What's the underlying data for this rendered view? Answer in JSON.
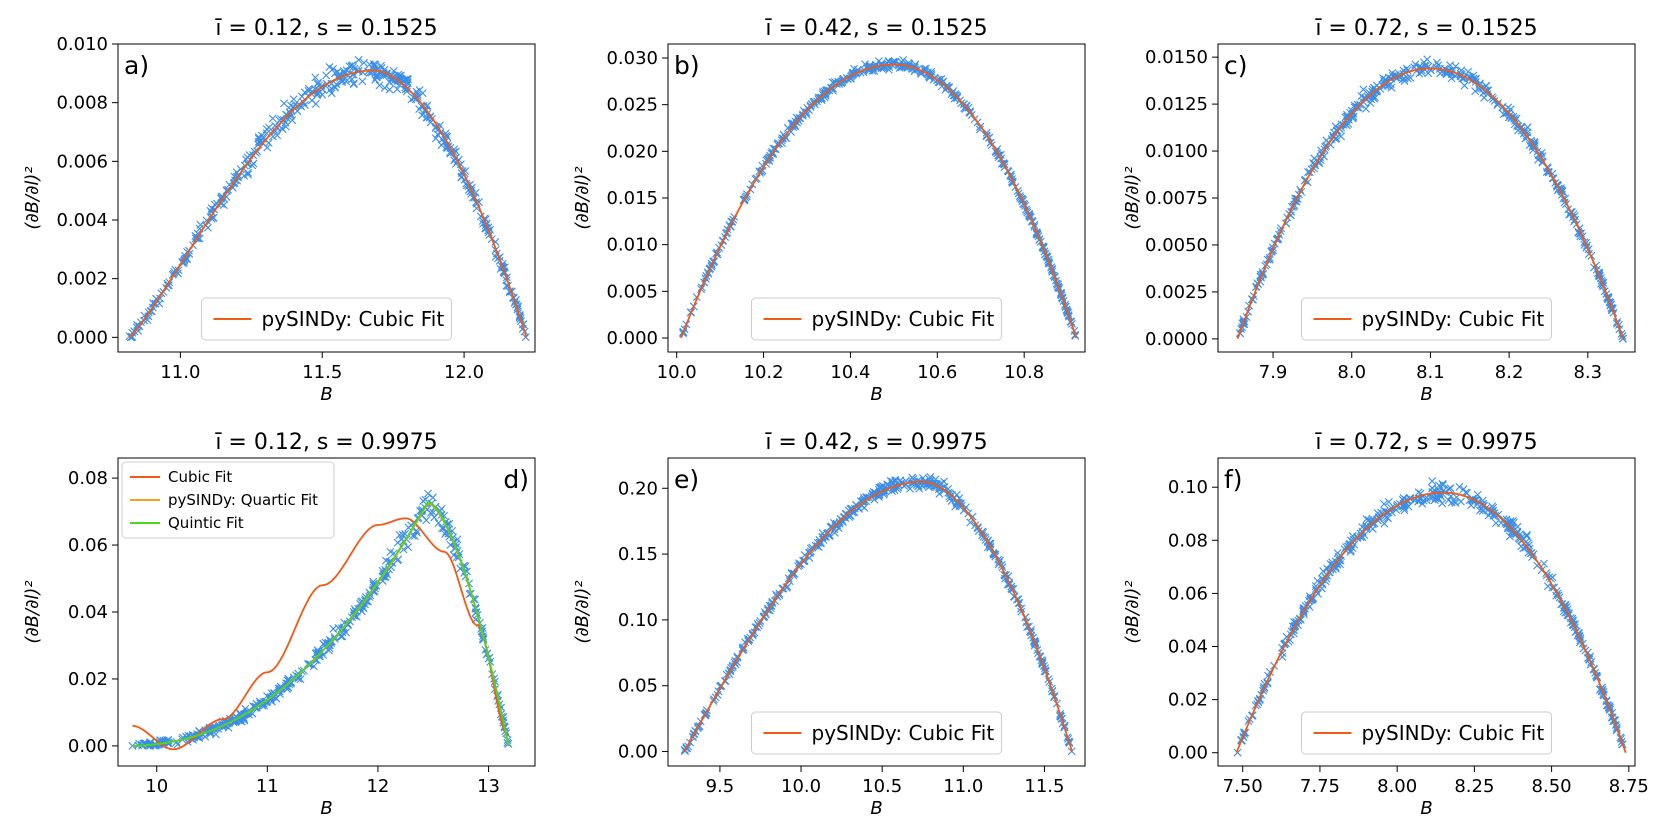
{
  "colors": {
    "scatter": "#3a8ee8",
    "cubic": "#f05a14",
    "quartic": "#f5a020",
    "quintic": "#4ad81e"
  },
  "chart_data": [
    {
      "type": "scatter",
      "panel": "a)",
      "title_main": "ī = 0.12, s = 0.1525",
      "xlabel": "B",
      "ylabel": "(∂B/∂l)²",
      "xlim": [
        10.78,
        12.25
      ],
      "ylim": [
        -0.0005,
        0.01
      ],
      "xticks": [
        11.0,
        11.5,
        12.0
      ],
      "xtick_labels": [
        "11.0",
        "11.5",
        "12.0"
      ],
      "yticks": [
        0.0,
        0.002,
        0.004,
        0.006,
        0.008,
        0.01
      ],
      "ytick_labels": [
        "0.000",
        "0.002",
        "0.004",
        "0.006",
        "0.008",
        "0.010"
      ],
      "series_model": {
        "x0": 10.82,
        "x1": 12.22,
        "peak_x": 11.68,
        "peak_y": 0.0091,
        "scatter_noise": 0.0005
      },
      "fits": [
        {
          "name": "pySINDy: Cubic Fit",
          "color_key": "cubic",
          "shape": "skew",
          "peak_x": 11.68,
          "peak_y": 0.0091
        }
      ],
      "legend": {
        "entries": [
          "pySINDy: Cubic Fit"
        ],
        "location": "lower center"
      },
      "panel_letter_location": "top-left"
    },
    {
      "type": "scatter",
      "panel": "b)",
      "title_main": "ī = 0.42, s = 0.1525",
      "xlabel": "B",
      "ylabel": "(∂B/∂l)²",
      "xlim": [
        9.98,
        10.94
      ],
      "ylim": [
        -0.0015,
        0.0315
      ],
      "xticks": [
        10.0,
        10.2,
        10.4,
        10.6,
        10.8
      ],
      "xtick_labels": [
        "10.0",
        "10.2",
        "10.4",
        "10.6",
        "10.8"
      ],
      "yticks": [
        0.0,
        0.005,
        0.01,
        0.015,
        0.02,
        0.025,
        0.03
      ],
      "ytick_labels": [
        "0.000",
        "0.005",
        "0.010",
        "0.015",
        "0.020",
        "0.025",
        "0.030"
      ],
      "series_model": {
        "x0": 10.01,
        "x1": 10.92,
        "peak_x": 10.5,
        "peak_y": 0.0293,
        "scatter_noise": 0.0005
      },
      "fits": [
        {
          "name": "pySINDy: Cubic Fit",
          "color_key": "cubic",
          "shape": "arch",
          "peak_x": 10.5,
          "peak_y": 0.0293
        }
      ],
      "legend": {
        "entries": [
          "pySINDy: Cubic Fit"
        ],
        "location": "lower center"
      },
      "panel_letter_location": "top-left"
    },
    {
      "type": "scatter",
      "panel": "c)",
      "title_main": "ī = 0.72, s = 0.1525",
      "xlabel": "B",
      "ylabel": "(∂B/∂l)²",
      "xlim": [
        7.83,
        8.36
      ],
      "ylim": [
        -0.0007,
        0.0157
      ],
      "xticks": [
        7.9,
        8.0,
        8.1,
        8.2,
        8.3
      ],
      "xtick_labels": [
        "7.9",
        "8.0",
        "8.1",
        "8.2",
        "8.3"
      ],
      "yticks": [
        0.0,
        0.0025,
        0.005,
        0.0075,
        0.01,
        0.0125,
        0.015
      ],
      "ytick_labels": [
        "0.0000",
        "0.0025",
        "0.0050",
        "0.0075",
        "0.0100",
        "0.0125",
        "0.0150"
      ],
      "series_model": {
        "x0": 7.855,
        "x1": 8.345,
        "peak_x": 8.1,
        "peak_y": 0.0144,
        "scatter_noise": 0.0005
      },
      "fits": [
        {
          "name": "pySINDy: Cubic Fit",
          "color_key": "cubic",
          "shape": "arch",
          "peak_x": 8.1,
          "peak_y": 0.0144
        }
      ],
      "legend": {
        "entries": [
          "pySINDy: Cubic Fit"
        ],
        "location": "lower center"
      },
      "panel_letter_location": "top-left"
    },
    {
      "type": "scatter",
      "panel": "d)",
      "title_main": "ī = 0.12, s = 0.9975",
      "xlabel": "B",
      "ylabel": "(∂B/∂l)²",
      "xlim": [
        9.65,
        13.42
      ],
      "ylim": [
        -0.006,
        0.086
      ],
      "xticks": [
        10,
        11,
        12,
        13
      ],
      "xtick_labels": [
        "10",
        "11",
        "12",
        "13"
      ],
      "yticks": [
        0.0,
        0.02,
        0.04,
        0.06,
        0.08
      ],
      "ytick_labels": [
        "0.00",
        "0.02",
        "0.04",
        "0.06",
        "0.08"
      ],
      "series_model": {
        "x0": 9.78,
        "x1": 13.18,
        "peak_x": 12.45,
        "peak_y": 0.0725,
        "scatter_noise": 0.004
      },
      "fits": [
        {
          "name": "Cubic Fit",
          "color_key": "cubic",
          "shape": "cubic-poor"
        },
        {
          "name": "pySINDy: Quartic Fit",
          "color_key": "quartic",
          "shape": "skew-strong"
        },
        {
          "name": "Quintic Fit",
          "color_key": "quintic",
          "shape": "skew-strong"
        }
      ],
      "legend": {
        "entries": [
          "Cubic Fit",
          "pySINDy: Quartic Fit",
          "Quintic Fit"
        ],
        "location": "upper left"
      },
      "panel_letter_location": "top-right"
    },
    {
      "type": "scatter",
      "panel": "e)",
      "title_main": "ī = 0.42, s = 0.9975",
      "xlabel": "B",
      "ylabel": "(∂B/∂l)²",
      "xlim": [
        9.18,
        11.75
      ],
      "ylim": [
        -0.011,
        0.223
      ],
      "xticks": [
        9.5,
        10.0,
        10.5,
        11.0,
        11.5
      ],
      "xtick_labels": [
        "9.5",
        "10.0",
        "10.5",
        "11.0",
        "11.5"
      ],
      "yticks": [
        0.0,
        0.05,
        0.1,
        0.15,
        0.2
      ],
      "ytick_labels": [
        "0.00",
        "0.05",
        "0.10",
        "0.15",
        "0.20"
      ],
      "series_model": {
        "x0": 9.28,
        "x1": 11.67,
        "peak_x": 10.75,
        "peak_y": 0.205,
        "scatter_noise": 0.005
      },
      "fits": [
        {
          "name": "pySINDy: Cubic Fit",
          "color_key": "cubic",
          "shape": "arch-skew",
          "peak_x": 10.75,
          "peak_y": 0.205
        }
      ],
      "legend": {
        "entries": [
          "pySINDy: Cubic Fit"
        ],
        "location": "lower center"
      },
      "panel_letter_location": "top-left"
    },
    {
      "type": "scatter",
      "panel": "f)",
      "title_main": "ī = 0.72, s = 0.9975",
      "xlabel": "B",
      "ylabel": "(∂B/∂l)²",
      "xlim": [
        7.42,
        8.77
      ],
      "ylim": [
        -0.005,
        0.111
      ],
      "xticks": [
        7.5,
        7.75,
        8.0,
        8.25,
        8.5,
        8.75
      ],
      "xtick_labels": [
        "7.50",
        "7.75",
        "8.00",
        "8.25",
        "8.50",
        "8.75"
      ],
      "yticks": [
        0.0,
        0.02,
        0.04,
        0.06,
        0.08,
        0.1
      ],
      "ytick_labels": [
        "0.00",
        "0.02",
        "0.04",
        "0.06",
        "0.08",
        "0.10"
      ],
      "series_model": {
        "x0": 7.48,
        "x1": 8.74,
        "peak_x": 8.15,
        "peak_y": 0.098,
        "scatter_noise": 0.004
      },
      "fits": [
        {
          "name": "pySINDy: Cubic Fit",
          "color_key": "cubic",
          "shape": "arch",
          "peak_x": 8.15,
          "peak_y": 0.098
        }
      ],
      "legend": {
        "entries": [
          "pySINDy: Cubic Fit"
        ],
        "location": "lower center"
      },
      "panel_letter_location": "top-left"
    }
  ]
}
